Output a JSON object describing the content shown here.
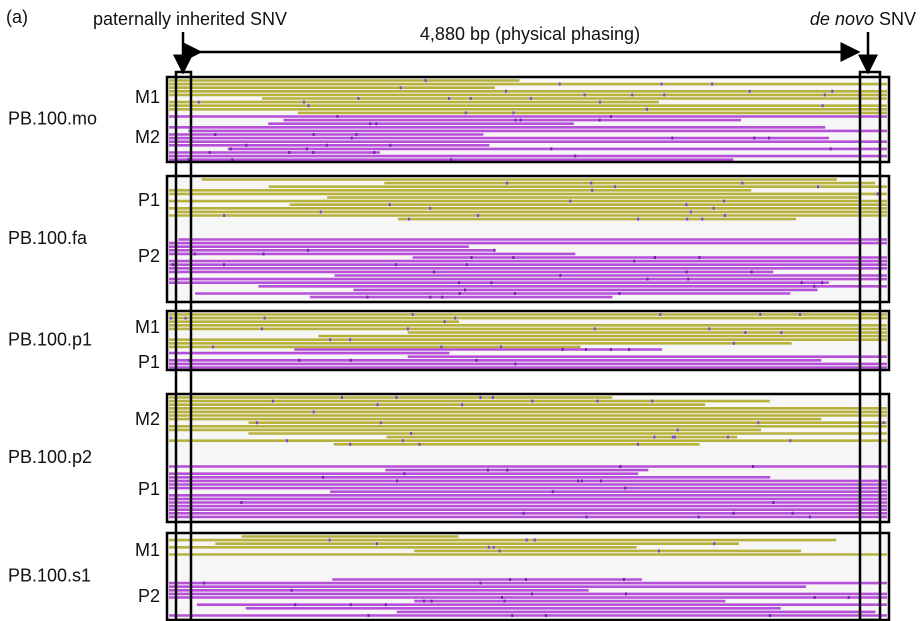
{
  "panel_label": "(a)",
  "annotations": {
    "left_snv": "paternally inherited SNV",
    "span": "4,880 bp (physical phasing)",
    "right_snv_term": "de novo",
    "right_snv_rest": "SNV"
  },
  "samples": [
    {
      "name": "PB.100.mo",
      "haplotypes": [
        {
          "label": "M1",
          "color": "#b7b23e"
        },
        {
          "label": "M2",
          "color": "#b650d8"
        }
      ]
    },
    {
      "name": "PB.100.fa",
      "haplotypes": [
        {
          "label": "P1",
          "color": "#b7b23e"
        },
        {
          "label": "P2",
          "color": "#b650d8"
        }
      ]
    },
    {
      "name": "PB.100.p1",
      "haplotypes": [
        {
          "label": "M1",
          "color": "#b7b23e"
        },
        {
          "label": "P1",
          "color": "#b650d8"
        }
      ]
    },
    {
      "name": "PB.100.p2",
      "haplotypes": [
        {
          "label": "M2",
          "color": "#b7b23e"
        },
        {
          "label": "P1",
          "color": "#b650d8"
        }
      ]
    },
    {
      "name": "PB.100.s1",
      "haplotypes": [
        {
          "label": "M1",
          "color": "#b7b23e"
        },
        {
          "label": "P2",
          "color": "#b650d8"
        }
      ]
    }
  ]
}
